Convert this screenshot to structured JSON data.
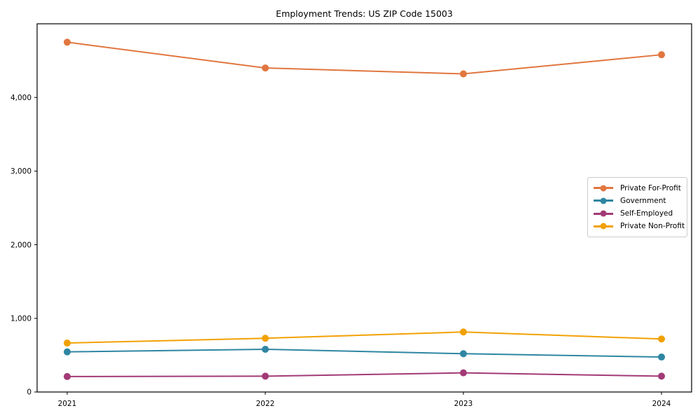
{
  "chart_data": {
    "type": "line",
    "title": "Employment Trends: US ZIP Code 15003",
    "xlabel": "",
    "ylabel": "",
    "categories": [
      2021,
      2022,
      2023,
      2024
    ],
    "series": [
      {
        "name": "Private For-Profit",
        "color": "#e1763f",
        "values": [
          4750,
          4400,
          4320,
          4580
        ]
      },
      {
        "name": "Government",
        "color": "#2e86a2",
        "values": [
          545,
          580,
          520,
          475
        ]
      },
      {
        "name": "Self-Employed",
        "color": "#a23a76",
        "values": [
          210,
          215,
          260,
          215
        ]
      },
      {
        "name": "Private Non-Profit",
        "color": "#f2a104",
        "values": [
          665,
          730,
          815,
          720
        ]
      }
    ],
    "yticks": [
      0,
      1000,
      2000,
      3000,
      4000
    ],
    "ytick_labels": [
      "0",
      "1,000",
      "2,000",
      "3,000",
      "4,000"
    ],
    "ylim": [
      0,
      5000
    ],
    "grid": false,
    "legend_position": "center right",
    "axis_color": "#000000",
    "background_color": "#ffffff"
  }
}
